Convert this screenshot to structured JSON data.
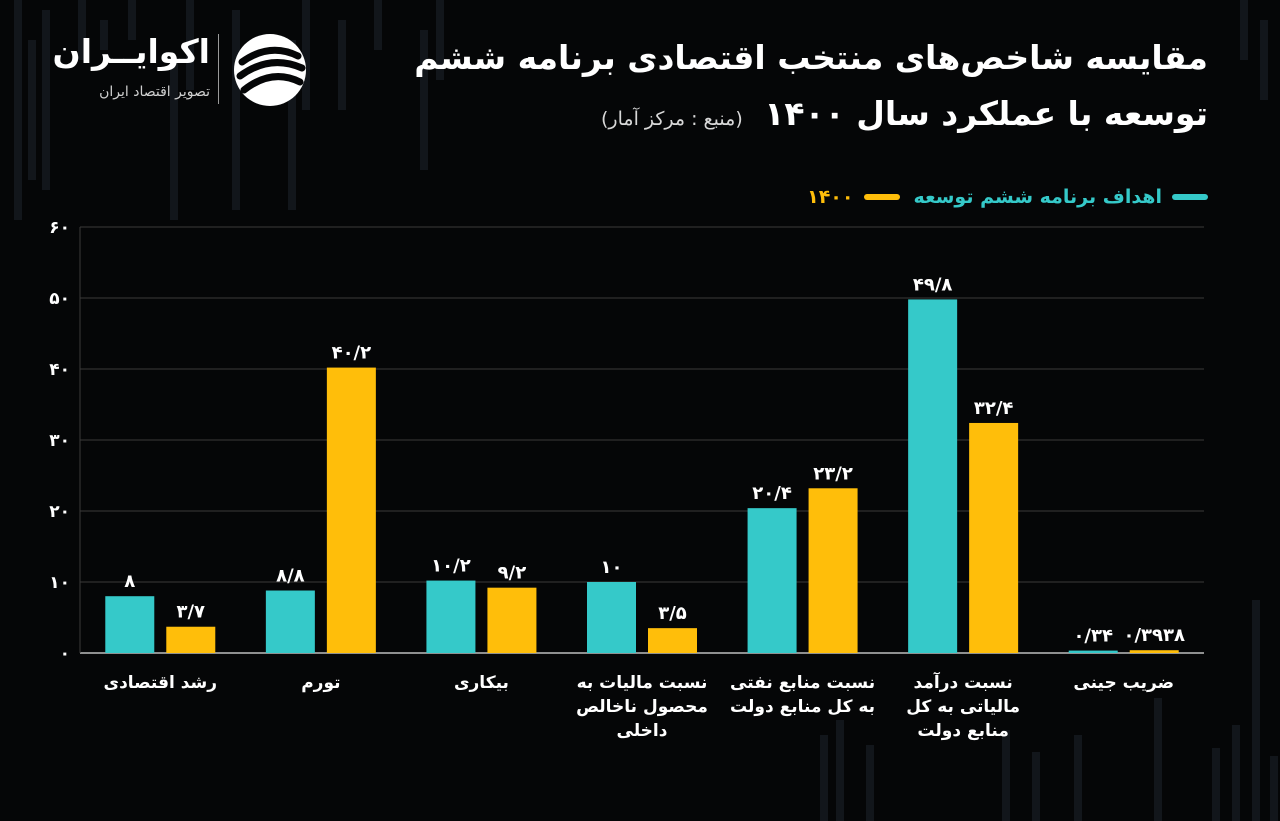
{
  "header": {
    "title_line1": "مقایسه شاخص‌های منتخب اقتصادی برنامه ششم",
    "title_line2": "توسعه با عملکرد سال ۱۴۰۰",
    "source": "(منبع : مرکز آمار)"
  },
  "logo": {
    "name": "اکوایــران",
    "tagline": "تصویر اقتصاد ایران"
  },
  "colors": {
    "background": "#050607",
    "target": "#35c9c9",
    "actual": "#ffbe0a",
    "grid": "#3a3a3a"
  },
  "chart_data": {
    "type": "bar",
    "categories": [
      [
        "رشد اقتصادی"
      ],
      [
        "تورم"
      ],
      [
        "بیکاری"
      ],
      [
        "نسبت مالیات به",
        "محصول ناخالص",
        "داخلی"
      ],
      [
        "نسبت منابع نفتی",
        "به کل منابع دولت"
      ],
      [
        "نسبت درآمد",
        "مالیاتی به کل",
        "منابع دولت"
      ],
      [
        "ضریب جینی"
      ]
    ],
    "series": [
      {
        "name": "اهداف برنامه ششم توسعه",
        "values": [
          8,
          8.8,
          10.2,
          10,
          20.4,
          49.8,
          0.34
        ],
        "labels": [
          "۸",
          "۸/۸",
          "۱۰/۲",
          "۱۰",
          "۲۰/۴",
          "۴۹/۸",
          "۰/۳۴"
        ],
        "color": "#35c9c9"
      },
      {
        "name": "۱۴۰۰",
        "values": [
          3.7,
          40.2,
          9.2,
          3.5,
          23.2,
          32.4,
          0.3938
        ],
        "labels": [
          "۳/۷",
          "۴۰/۲",
          "۹/۲",
          "۳/۵",
          "۲۳/۲",
          "۳۲/۴",
          "۰/۳۹۳۸"
        ],
        "color": "#ffbe0a"
      }
    ],
    "yticks": [
      0,
      10,
      20,
      30,
      40,
      50,
      60
    ],
    "ytick_labels": [
      "۰",
      "۱۰",
      "۲۰",
      "۳۰",
      "۴۰",
      "۵۰",
      "۶۰"
    ],
    "ylim": [
      0,
      60
    ],
    "grid": true,
    "legend_position": "top-right",
    "xlabel": "",
    "ylabel": ""
  }
}
